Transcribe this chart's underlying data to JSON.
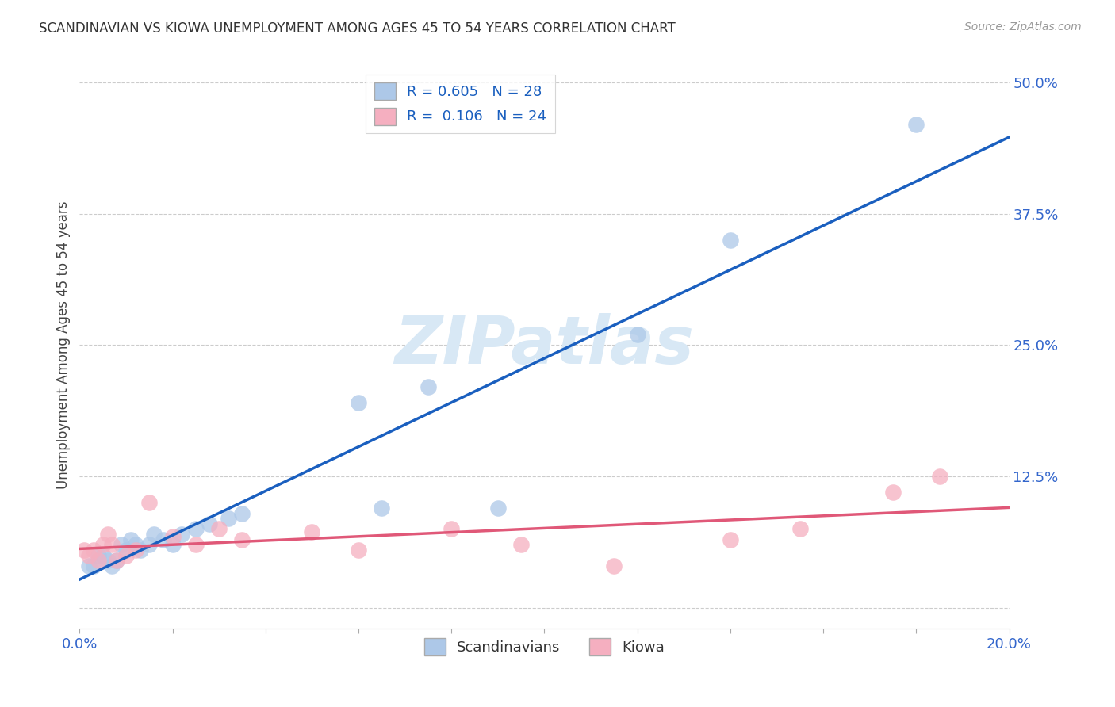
{
  "title": "SCANDINAVIAN VS KIOWA UNEMPLOYMENT AMONG AGES 45 TO 54 YEARS CORRELATION CHART",
  "source": "Source: ZipAtlas.com",
  "ylabel": "Unemployment Among Ages 45 to 54 years",
  "xlim": [
    0.0,
    0.2
  ],
  "ylim": [
    -0.02,
    0.52
  ],
  "ytick_positions": [
    0.0,
    0.125,
    0.25,
    0.375,
    0.5
  ],
  "ytick_labels": [
    "",
    "12.5%",
    "25.0%",
    "37.5%",
    "50.0%"
  ],
  "xtick_positions": [
    0.0,
    0.02,
    0.04,
    0.06,
    0.08,
    0.1,
    0.12,
    0.14,
    0.16,
    0.18,
    0.2
  ],
  "xtick_labels": [
    "0.0%",
    "",
    "",
    "",
    "",
    "",
    "",
    "",
    "",
    "",
    "20.0%"
  ],
  "scandinavians_x": [
    0.002,
    0.003,
    0.004,
    0.005,
    0.006,
    0.007,
    0.008,
    0.009,
    0.01,
    0.011,
    0.012,
    0.013,
    0.015,
    0.016,
    0.018,
    0.02,
    0.022,
    0.025,
    0.028,
    0.032,
    0.035,
    0.06,
    0.065,
    0.075,
    0.09,
    0.12,
    0.14,
    0.18
  ],
  "scandinavians_y": [
    0.04,
    0.04,
    0.05,
    0.05,
    0.045,
    0.04,
    0.045,
    0.06,
    0.055,
    0.065,
    0.06,
    0.055,
    0.06,
    0.07,
    0.065,
    0.06,
    0.07,
    0.075,
    0.08,
    0.085,
    0.09,
    0.195,
    0.095,
    0.21,
    0.095,
    0.26,
    0.35,
    0.46
  ],
  "kiowa_x": [
    0.001,
    0.002,
    0.003,
    0.004,
    0.005,
    0.006,
    0.007,
    0.008,
    0.01,
    0.012,
    0.015,
    0.02,
    0.025,
    0.03,
    0.035,
    0.05,
    0.06,
    0.08,
    0.095,
    0.115,
    0.14,
    0.155,
    0.175,
    0.185
  ],
  "kiowa_y": [
    0.055,
    0.05,
    0.055,
    0.045,
    0.06,
    0.07,
    0.06,
    0.045,
    0.05,
    0.055,
    0.1,
    0.068,
    0.06,
    0.075,
    0.065,
    0.072,
    0.055,
    0.075,
    0.06,
    0.04,
    0.065,
    0.075,
    0.11,
    0.125
  ],
  "R_scand": 0.605,
  "N_scand": 28,
  "R_kiowa": 0.106,
  "N_kiowa": 24,
  "scand_color": "#adc8e8",
  "kiowa_color": "#f5afc0",
  "scand_line_color": "#1a5fbf",
  "kiowa_line_color": "#e05878",
  "tick_color": "#3366cc",
  "label_color": "#444444",
  "watermark_color": "#d8e8f5",
  "background_color": "#ffffff",
  "grid_color": "#cccccc"
}
